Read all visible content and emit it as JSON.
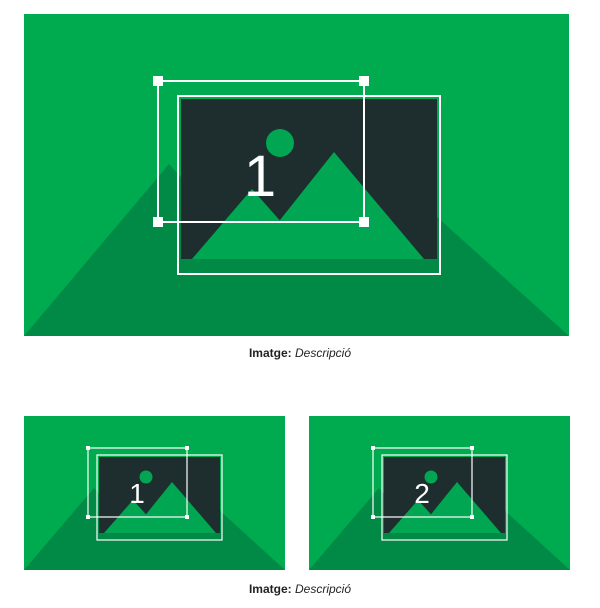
{
  "colors": {
    "background": "#00ab50",
    "shadow_mountain": "#008a46",
    "photo_frame": "#1e2d2d",
    "photo_mountain": "#00a651",
    "overlay_line": "#ffffff",
    "caption_text": "#222222"
  },
  "figures": {
    "large": {
      "number": "1",
      "icon": "image-placeholder-icon"
    },
    "small_1": {
      "number": "1",
      "icon": "image-placeholder-icon"
    },
    "small_2": {
      "number": "2",
      "icon": "image-placeholder-icon"
    }
  },
  "captions": {
    "top": {
      "label": "Imatge:",
      "text": "Descripció"
    },
    "bottom": {
      "label": "Imatge:",
      "text": "Descripció"
    }
  }
}
